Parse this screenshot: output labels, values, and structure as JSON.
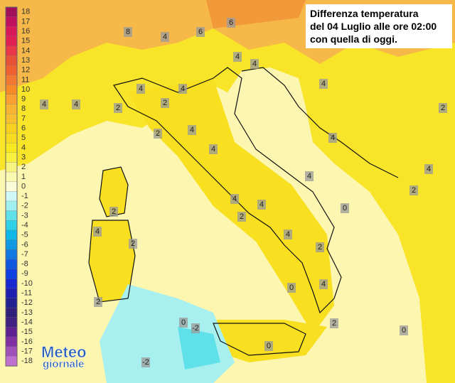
{
  "header": {
    "title": [
      "Differenza temperatura",
      "del 04 Luglio alle ore 02:00",
      "con quella di oggi."
    ]
  },
  "logo": [
    "Meteo",
    "giornale"
  ],
  "legend": {
    "labels": [
      "18",
      "17",
      "16",
      "15",
      "14",
      "13",
      "12",
      "11",
      "10",
      "9",
      "8",
      "7",
      "6",
      "5",
      "4",
      "3",
      "2",
      "1",
      "0",
      "-1",
      "-2",
      "-3",
      "-4",
      "-5",
      "-6",
      "-7",
      "-8",
      "-9",
      "-10",
      "-11",
      "-12",
      "-13",
      "-14",
      "-15",
      "-16",
      "-17",
      "-18"
    ],
    "colors": [
      "#a0105a",
      "#c01060",
      "#d8185a",
      "#e02050",
      "#e83848",
      "#e85038",
      "#f06030",
      "#f07830",
      "#f58c28",
      "#f8a030",
      "#f8b430",
      "#f8c030",
      "#f8d020",
      "#f8dc20",
      "#f8e820",
      "#f8f040",
      "#f8f480",
      "#fafab0",
      "#fcfcd8",
      "#d0f8f8",
      "#a0f0f0",
      "#60e0e8",
      "#30d0e8",
      "#10b8e8",
      "#1098e0",
      "#1078e0",
      "#1058e0",
      "#1040e0",
      "#1828d0",
      "#2020b0",
      "#202090",
      "#302078",
      "#402080",
      "#602090",
      "#8030a0",
      "#a050b8",
      "#c070d0"
    ]
  },
  "map_labels": [
    "8",
    "6",
    "6",
    "4",
    "4",
    "4",
    "4",
    "4",
    "4",
    "4",
    "2",
    "2",
    "4",
    "2",
    "4",
    "2",
    "4",
    "2",
    "4",
    "4",
    "2",
    "4",
    "2",
    "0",
    "0",
    "4",
    "2",
    "-2",
    "0",
    "0",
    "2",
    "0",
    "-2",
    "4",
    "2",
    "2",
    "4",
    "4",
    "4"
  ]
}
